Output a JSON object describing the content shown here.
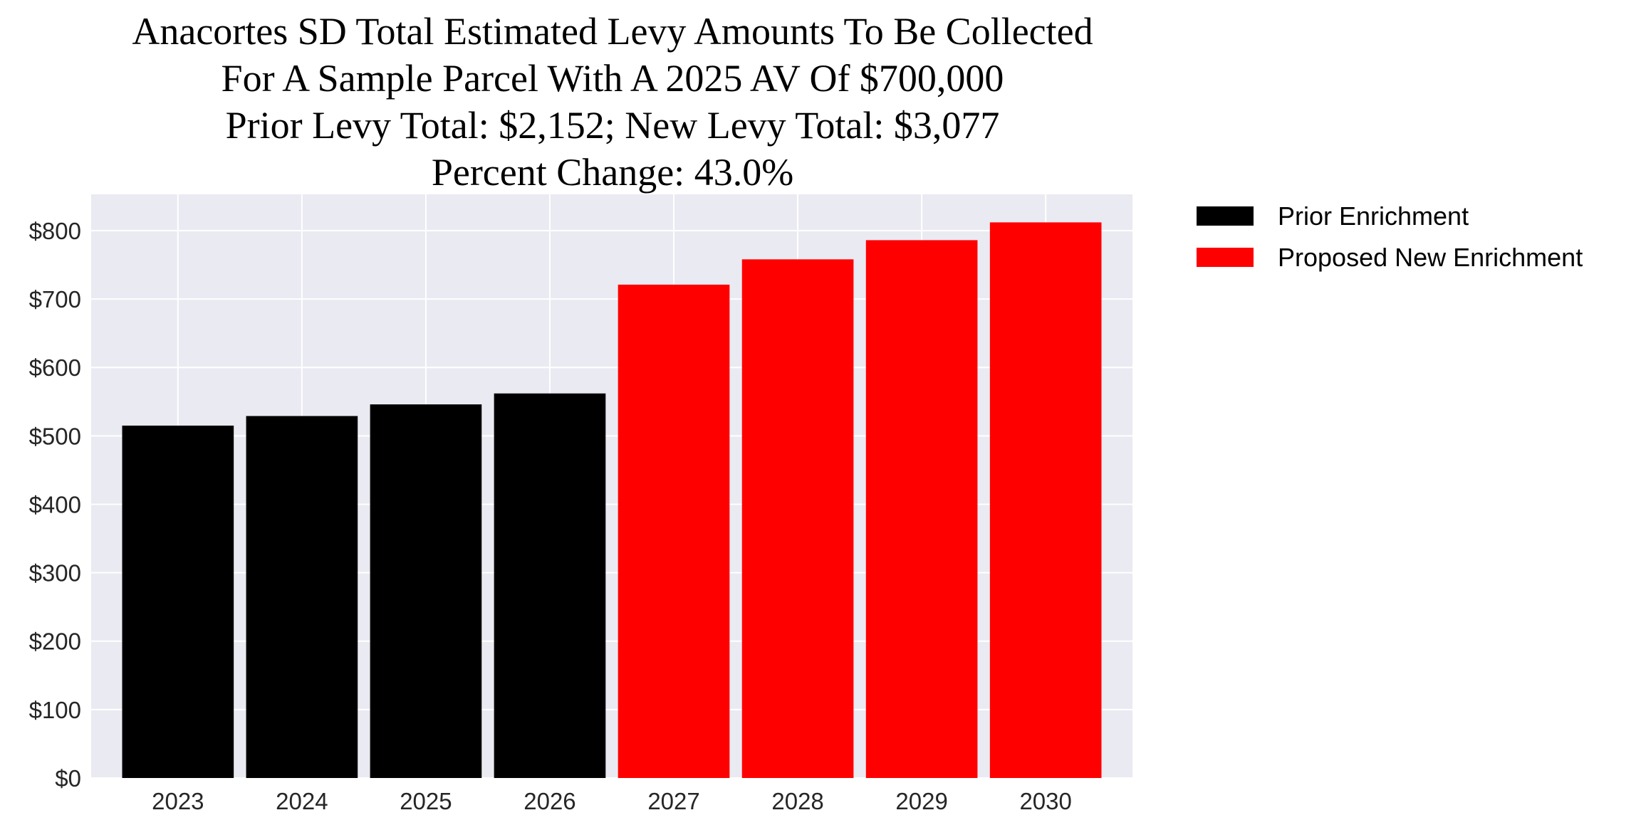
{
  "chart_data": {
    "type": "bar",
    "title": [
      "Anacortes SD Total Estimated Levy Amounts To Be Collected",
      "For A Sample Parcel With A 2025 AV Of $700,000",
      "Prior Levy Total:  $2,152; New Levy Total: $3,077",
      "Percent Change: 43.0%"
    ],
    "xlabel": "",
    "ylabel": "",
    "categories": [
      "2023",
      "2024",
      "2025",
      "2026",
      "2027",
      "2028",
      "2029",
      "2030"
    ],
    "series": [
      {
        "name": "Prior Enrichment",
        "color": "#000000",
        "values": [
          515,
          529,
          546,
          562,
          null,
          null,
          null,
          null
        ]
      },
      {
        "name": "Proposed New Enrichment",
        "color": "#ff0000",
        "values": [
          null,
          null,
          null,
          null,
          721,
          758,
          786,
          812
        ]
      }
    ],
    "ylim": [
      0,
      853
    ],
    "yticks": [
      0,
      100,
      200,
      300,
      400,
      500,
      600,
      700,
      800
    ],
    "ytick_labels": [
      "$0",
      "$100",
      "$200",
      "$300",
      "$400",
      "$500",
      "$600",
      "$700",
      "$800"
    ],
    "grid": true,
    "legend_position": "outside-top-right",
    "background": "#eaeaf2"
  }
}
